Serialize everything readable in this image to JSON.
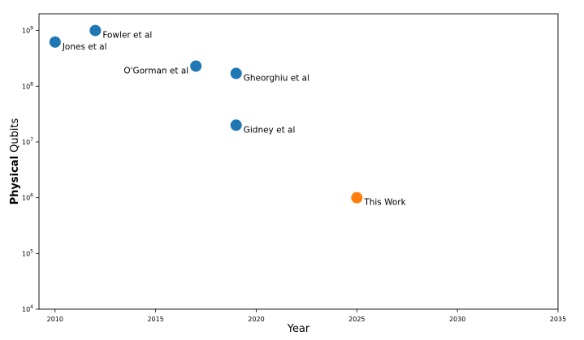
{
  "chart_data": {
    "type": "scatter",
    "title": "",
    "xlabel": "Year",
    "ylabel_bold": "Physical",
    "ylabel_rest": " Qubits",
    "xlim": [
      2009.2,
      2035
    ],
    "ylim_log10": [
      4,
      9.3
    ],
    "yscale": "log",
    "grid": true,
    "x_ticks": [
      2010,
      2015,
      2020,
      2025,
      2030,
      2035
    ],
    "y_tick_exponents": [
      4,
      5,
      6,
      7,
      8,
      9
    ],
    "y_tick_base": "10",
    "points": [
      {
        "label": "Jones et al",
        "x": 2010,
        "y": 620000000,
        "color": "#1f77b4",
        "label_side": "right"
      },
      {
        "label": "Fowler et al",
        "x": 2012,
        "y": 1000000000,
        "color": "#1f77b4",
        "label_side": "right"
      },
      {
        "label": "O'Gorman et al",
        "x": 2017,
        "y": 230000000,
        "color": "#1f77b4",
        "label_side": "left"
      },
      {
        "label": "Gheorghiu et al",
        "x": 2019,
        "y": 170000000,
        "color": "#1f77b4",
        "label_side": "right"
      },
      {
        "label": "Gidney et al",
        "x": 2019,
        "y": 20000000,
        "color": "#1f77b4",
        "label_side": "right"
      },
      {
        "label": "This Work",
        "x": 2025,
        "y": 1000000,
        "color": "#ff7f0e",
        "label_side": "right"
      }
    ]
  }
}
